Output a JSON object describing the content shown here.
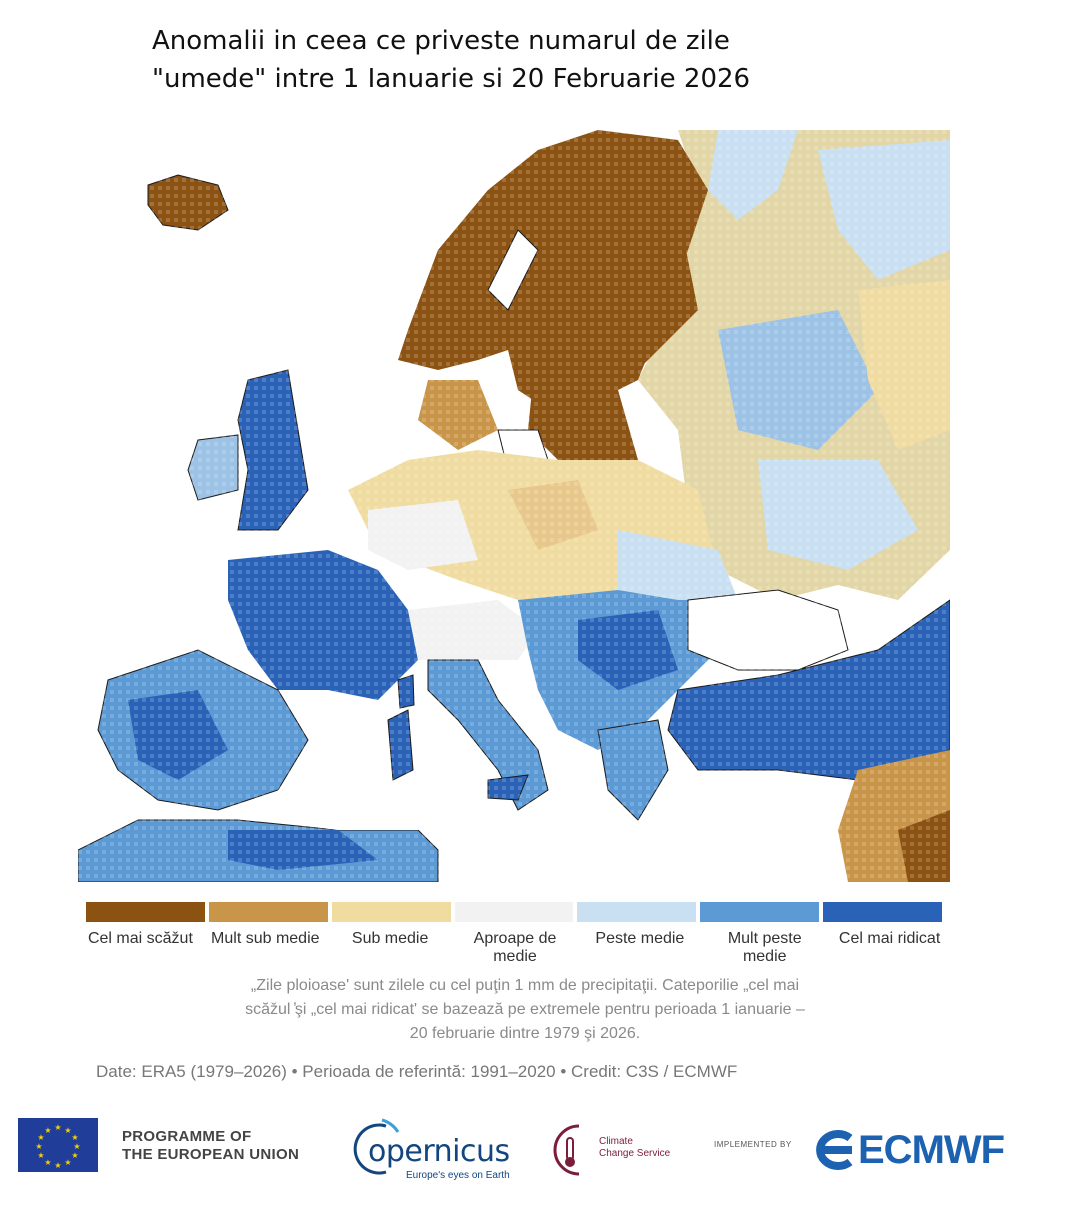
{
  "title": {
    "line1": "Anomalii in ceea ce priveste numarul de zile",
    "line2": "\"umede\" intre 1 Ianuarie si 20 Februarie 2026"
  },
  "map": {
    "region": "Europe",
    "land_outline_color": "#1a1a1a",
    "sea_color": "#ffffff"
  },
  "legend": {
    "items": [
      {
        "label": "Cel mai scăžut",
        "color": "#8c5212"
      },
      {
        "label": "Mult sub medie",
        "color": "#c99549"
      },
      {
        "label": "Sub medie",
        "color": "#f0dca0"
      },
      {
        "label": "Aproape de medie",
        "color": "#f2f2f2"
      },
      {
        "label": "Peste medie",
        "color": "#c9dff2"
      },
      {
        "label": "Mult peste medie",
        "color": "#5b9ad4"
      },
      {
        "label": "Cel mai ridicat",
        "color": "#2a62b8"
      }
    ]
  },
  "footnote": {
    "line1": "„Zile ploioase' sunt zilele cu cel puţin 1 mm de precipitaţii. Cateporilie „cel mai",
    "line2": "scăžul ̓şi „cel mai ridicat' se bazează pe extremele pentru perioada 1 ianuarie –",
    "line3": "20 februarie dintre 1979 şi 2026."
  },
  "source": "Date: ERA5 (1979–2026) • Perioada de referintă: 1991–2020 • Credit: C3S / ECMWF",
  "logos": {
    "eu_line1": "PROGRAMME OF",
    "eu_line2": "THE EUROPEAN UNION",
    "copernicus": "opernicus",
    "copernicus_tagline": "Europe's eyes on Earth",
    "c3s_line1": "Climate",
    "c3s_line2": "Change Service",
    "implemented_by": "IMPLEMENTED BY",
    "ecmwf": "ECMWF"
  }
}
